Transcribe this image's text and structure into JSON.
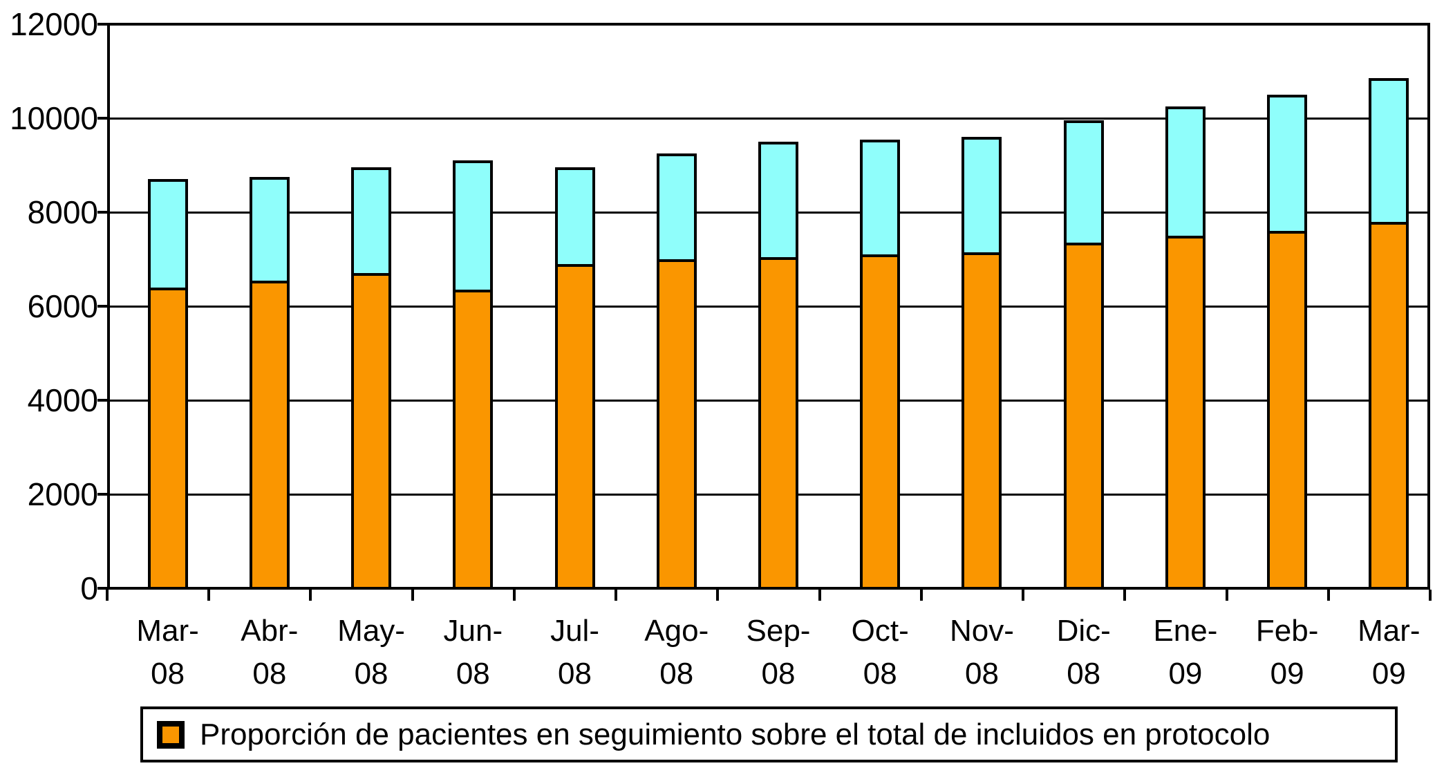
{
  "chart_data": {
    "type": "bar",
    "stacked": true,
    "title": "",
    "xlabel": "",
    "ylabel": "",
    "categories": [
      "Mar-08",
      "Abr-08",
      "May-08",
      "Jun-08",
      "Jul-08",
      "Ago-08",
      "Sep-08",
      "Oct-08",
      "Nov-08",
      "Dic-08",
      "Ene-09",
      "Feb-09",
      "Mar-09"
    ],
    "series": [
      {
        "name": "Proporción de pacientes en seguimiento sobre el total de incluidos en protocolo",
        "color": "#FA9600",
        "in_legend": true,
        "values": [
          6400,
          6550,
          6700,
          6350,
          6900,
          7000,
          7050,
          7100,
          7150,
          7350,
          7500,
          7600,
          7800
        ]
      },
      {
        "name": "",
        "color": "#8FFEFB",
        "in_legend": false,
        "values": [
          2300,
          2200,
          2250,
          2750,
          2050,
          2250,
          2450,
          2450,
          2450,
          2600,
          2750,
          2900,
          3050
        ]
      }
    ],
    "stack_totals": [
      8700,
      8750,
      8950,
      9100,
      8950,
      9250,
      9500,
      9550,
      9600,
      9950,
      10250,
      10500,
      10850
    ],
    "ylim": [
      0,
      12000
    ],
    "ytick_step": 2000,
    "ytick_labels": [
      "0",
      "2000",
      "4000",
      "6000",
      "8000",
      "10000",
      "12000"
    ],
    "grid": true,
    "legend_position": "bottom",
    "bar_outline_color": "#000000"
  }
}
